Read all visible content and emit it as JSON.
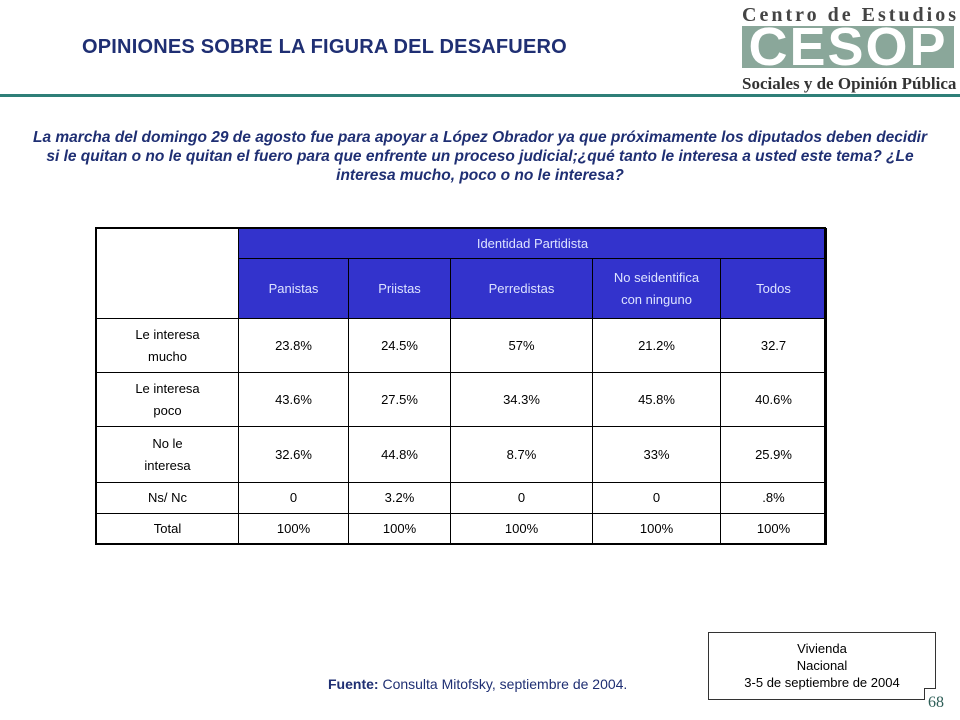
{
  "title": "OPINIONES SOBRE LA FIGURA  DEL DESAFUERO",
  "logo": {
    "top_text": "Centro de Estudios",
    "big_text": "CESOP",
    "bottom_text": "Sociales y de Opinión Pública"
  },
  "question": "La marcha del domingo 29 de agosto fue para apoyar a López Obrador ya que próximamente los diputados deben decidir si le quitan o no le quitan el fuero  para que enfrente un proceso judicial;¿qué tanto le interesa a usted este tema? ¿Le interesa mucho, poco o no le interesa?",
  "table": {
    "group_header": "Identidad Partidista",
    "columns": [
      "Panistas",
      "Priistas",
      "Perredistas",
      "No seidentifica con ninguno",
      "Todos"
    ],
    "rows": [
      {
        "label": "Le interesa mucho",
        "values": [
          "23.8%",
          "24.5%",
          "57%",
          "21.2%",
          "32.7"
        ]
      },
      {
        "label": "Le interesa poco",
        "values": [
          "43.6%",
          "27.5%",
          "34.3%",
          "45.8%",
          "40.6%"
        ]
      },
      {
        "label": "No le interesa",
        "values": [
          "32.6%",
          "44.8%",
          "8.7%",
          "33%",
          "25.9%"
        ]
      },
      {
        "label": "Ns/ Nc",
        "values": [
          "0",
          "3.2%",
          "0",
          "0",
          ".8%"
        ]
      },
      {
        "label": "Total",
        "values": [
          "100%",
          "100%",
          "100%",
          "100%",
          "100%"
        ]
      }
    ]
  },
  "source": {
    "label": "Fuente:",
    "text": " Consulta Mitofsky,  septiembre de 2004."
  },
  "note": {
    "line1": "Vivienda",
    "line2": "Nacional",
    "line3": "3-5 de septiembre de 2004"
  },
  "page_number": "68",
  "colors": {
    "header_bg": "#3333cc",
    "title_color": "#1f2f73",
    "rule_color": "#2f7f78"
  }
}
